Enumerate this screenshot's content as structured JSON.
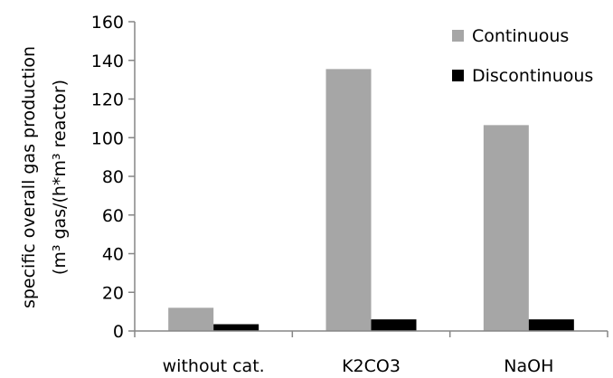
{
  "chart_data": {
    "type": "bar",
    "categories": [
      "without cat.",
      "K2CO3",
      "NaOH"
    ],
    "series": [
      {
        "name": "Continuous",
        "values": [
          12,
          135.5,
          106.5
        ],
        "color": "#a6a6a6"
      },
      {
        "name": "Discontinuous",
        "values": [
          3.5,
          6,
          6
        ],
        "color": "#000000"
      }
    ],
    "ylim": [
      0,
      160
    ],
    "yticks": [
      0,
      20,
      40,
      60,
      80,
      100,
      120,
      140,
      160
    ],
    "ylabel_line1": "specific overall gas production",
    "ylabel_line2": "(m³ gas/(h*m³ reactor)",
    "xlabel": "",
    "grid": false,
    "legend_position": "top-right"
  }
}
